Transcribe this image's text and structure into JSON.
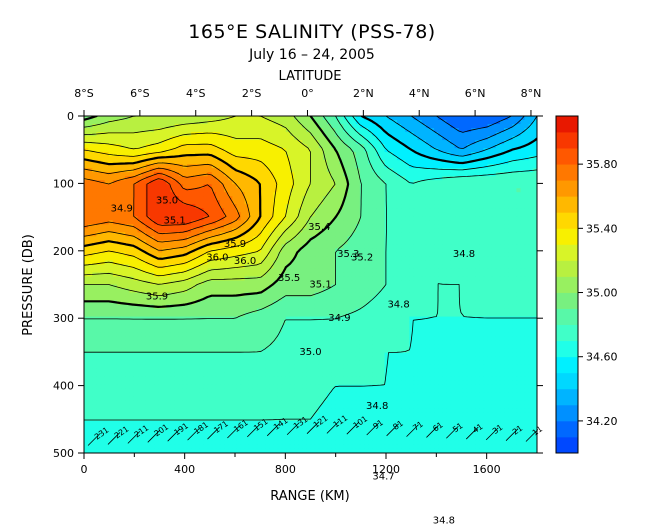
{
  "chart_data": {
    "type": "heatmap",
    "title": "165°E SALINITY (PSS-78)",
    "subtitle": "July 16 – 24, 2005",
    "top_axis_label": "LATITUDE",
    "xlabel": "RANGE (KM)",
    "ylabel": "PRESSURE (DB)",
    "xlim": [
      0,
      1800
    ],
    "ylim": [
      0,
      500
    ],
    "y_reversed": true,
    "x_ticks": [
      0,
      400,
      800,
      1200,
      1600
    ],
    "x_tick_labels": [
      "0",
      "400",
      "800",
      "1200",
      "1600"
    ],
    "y_ticks": [
      0,
      100,
      200,
      300,
      400,
      500
    ],
    "y_tick_labels": [
      "0",
      "100",
      "200",
      "300",
      "400",
      "500"
    ],
    "top_ticks_km": [
      0,
      222,
      444,
      666,
      888,
      1110,
      1332,
      1554,
      1776
    ],
    "top_tick_labels": [
      "8°S",
      "6°S",
      "4°S",
      "2°S",
      "0°",
      "2°N",
      "4°N",
      "6°N",
      "8°N"
    ],
    "colorbar": {
      "min": 34.0,
      "max": 36.1,
      "step": 0.1,
      "tick_values": [
        34.2,
        34.6,
        35.0,
        35.4,
        35.8
      ],
      "tick_labels": [
        "34.20",
        "34.60",
        "35.00",
        "35.40",
        "35.80"
      ]
    },
    "contour_labels": [
      {
        "text": "34.9",
        "x": 150,
        "y": 137
      },
      {
        "text": "35.0",
        "x": 330,
        "y": 125
      },
      {
        "text": "35.1",
        "x": 360,
        "y": 155
      },
      {
        "text": "35.4",
        "x": 935,
        "y": 165
      },
      {
        "text": "35.3",
        "x": 1050,
        "y": 205
      },
      {
        "text": "35.2",
        "x": 1105,
        "y": 210
      },
      {
        "text": "35.9",
        "x": 600,
        "y": 190
      },
      {
        "text": "36.0",
        "x": 530,
        "y": 210
      },
      {
        "text": "36.0",
        "x": 640,
        "y": 215
      },
      {
        "text": "35.9",
        "x": 290,
        "y": 268
      },
      {
        "text": "35.5",
        "x": 815,
        "y": 240
      },
      {
        "text": "35.1",
        "x": 940,
        "y": 250
      },
      {
        "text": "34.8",
        "x": 1510,
        "y": 205
      },
      {
        "text": "34.8",
        "x": 1250,
        "y": 280
      },
      {
        "text": "34.9",
        "x": 1015,
        "y": 300
      },
      {
        "text": "35.0",
        "x": 900,
        "y": 350
      },
      {
        "text": "34.8",
        "x": 1165,
        "y": 430
      },
      {
        "text": "34.7",
        "x": 1190,
        "y": 535
      },
      {
        "text": "34.8",
        "x": 1430,
        "y": 600
      }
    ],
    "oxygen_labels": [
      "231",
      "221",
      "211",
      "201",
      "191",
      "181",
      "171",
      "161",
      "151",
      "141",
      "131",
      "121",
      "111",
      "101",
      "91",
      "81",
      "71",
      "61",
      "51",
      "41",
      "31",
      "21",
      "11"
    ],
    "grid": [
      [
        34.95,
        35.05,
        35.1,
        35.1,
        35.12,
        35.15,
        35.2,
        35.2,
        35.15,
        35.0,
        34.8,
        34.5,
        34.4,
        34.3,
        34.2,
        34.1,
        34.1,
        34.2,
        34.4
      ],
      [
        35.4,
        35.35,
        35.3,
        35.35,
        35.45,
        35.45,
        35.35,
        35.35,
        35.3,
        35.2,
        35.0,
        34.85,
        34.6,
        34.5,
        34.4,
        34.3,
        34.4,
        34.5,
        34.55
      ],
      [
        35.75,
        35.7,
        35.8,
        36.0,
        35.75,
        35.8,
        35.6,
        35.5,
        35.35,
        35.2,
        35.1,
        34.9,
        34.8,
        34.7,
        34.75,
        34.8,
        34.8,
        34.8,
        34.8
      ],
      [
        35.8,
        35.75,
        35.8,
        36.0,
        36.0,
        35.9,
        35.75,
        35.5,
        35.3,
        35.1,
        35.0,
        34.9,
        34.8,
        34.75,
        34.75,
        34.75,
        34.75,
        34.8,
        34.8
      ],
      [
        35.45,
        35.4,
        35.45,
        35.6,
        35.55,
        35.4,
        35.35,
        35.3,
        35.05,
        34.95,
        34.9,
        34.85,
        34.8,
        34.75,
        34.7,
        34.75,
        34.75,
        34.75,
        34.75
      ],
      [
        35.1,
        35.1,
        35.15,
        35.2,
        35.15,
        35.05,
        35.05,
        35.05,
        34.95,
        34.95,
        34.9,
        34.85,
        34.8,
        34.75,
        34.7,
        34.7,
        34.72,
        34.72,
        34.72
      ],
      [
        34.9,
        34.9,
        34.9,
        34.9,
        34.9,
        34.9,
        34.9,
        34.85,
        34.8,
        34.8,
        34.8,
        34.78,
        34.75,
        34.7,
        34.7,
        34.7,
        34.7,
        34.7,
        34.7
      ],
      [
        34.8,
        34.8,
        34.8,
        34.8,
        34.8,
        34.8,
        34.8,
        34.8,
        34.78,
        34.78,
        34.75,
        34.75,
        34.7,
        34.7,
        34.68,
        34.68,
        34.68,
        34.68,
        34.68
      ],
      [
        34.75,
        34.75,
        34.75,
        34.75,
        34.75,
        34.75,
        34.75,
        34.75,
        34.72,
        34.72,
        34.7,
        34.7,
        34.7,
        34.68,
        34.68,
        34.68,
        34.68,
        34.66,
        34.66
      ],
      [
        34.7,
        34.7,
        34.7,
        34.7,
        34.7,
        34.7,
        34.7,
        34.7,
        34.7,
        34.7,
        34.68,
        34.68,
        34.68,
        34.68,
        34.66,
        34.66,
        34.66,
        34.66,
        34.66
      ],
      [
        34.68,
        34.68,
        34.68,
        34.68,
        34.68,
        34.68,
        34.68,
        34.68,
        34.68,
        34.68,
        34.68,
        34.66,
        34.66,
        34.66,
        34.66,
        34.66,
        34.65,
        34.65,
        34.65
      ]
    ]
  },
  "colors": {
    "scale": [
      "#0048ff",
      "#0068ff",
      "#0090ff",
      "#00b4ff",
      "#00d8ff",
      "#00f0ff",
      "#20ffe8",
      "#40ffc8",
      "#58f8a8",
      "#78f080",
      "#98f060",
      "#b8f040",
      "#d8f428",
      "#f8f000",
      "#ffd800",
      "#ffb800",
      "#ff9800",
      "#ff7800",
      "#ff5800",
      "#f83800",
      "#e81800"
    ]
  }
}
